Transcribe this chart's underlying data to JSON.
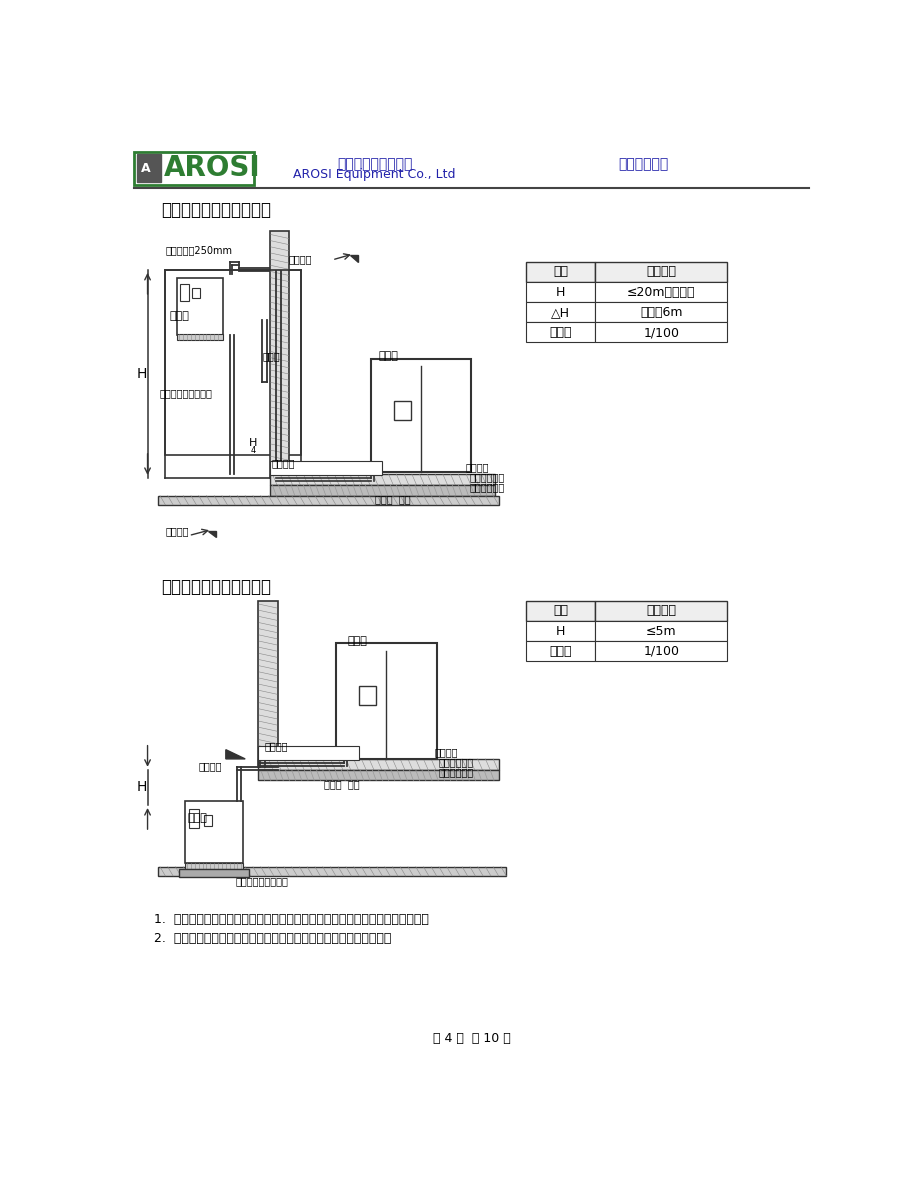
{
  "page_bg": "#ffffff",
  "company_cn": "阿洛西设备有限公司",
  "company_en": "AROSI Equipment Co., Ltd",
  "system_text": "精密控制系统",
  "title1": "室外机高于室内机安装图",
  "title2": "室外机低于室内机安装图",
  "table1_rows": [
    [
      "H",
      "≤20m（建议）"
    ],
    [
      "△H",
      "每上升6m"
    ],
    [
      "倾斜度",
      "1/100"
    ]
  ],
  "table2_rows": [
    [
      "H",
      "≤5m"
    ],
    [
      "倾斜度",
      "1/100"
    ]
  ],
  "note1": "1.  制冷剂管道均用铜管焊接，铜管焊接前气瓶、焊枪、减压阀、气管安全检查。",
  "note2": "2.  管径：一般按机组随机资料确定。如管路过长则按下表变化径管：",
  "footer_text": "第 4 页  共 10 页",
  "blue_color": "#2222aa",
  "green_color": "#2e7d32",
  "dark": "#333333",
  "mid": "#666666",
  "light_gray": "#cccccc",
  "mid_gray": "#999999",
  "hatch_gray": "#888888"
}
